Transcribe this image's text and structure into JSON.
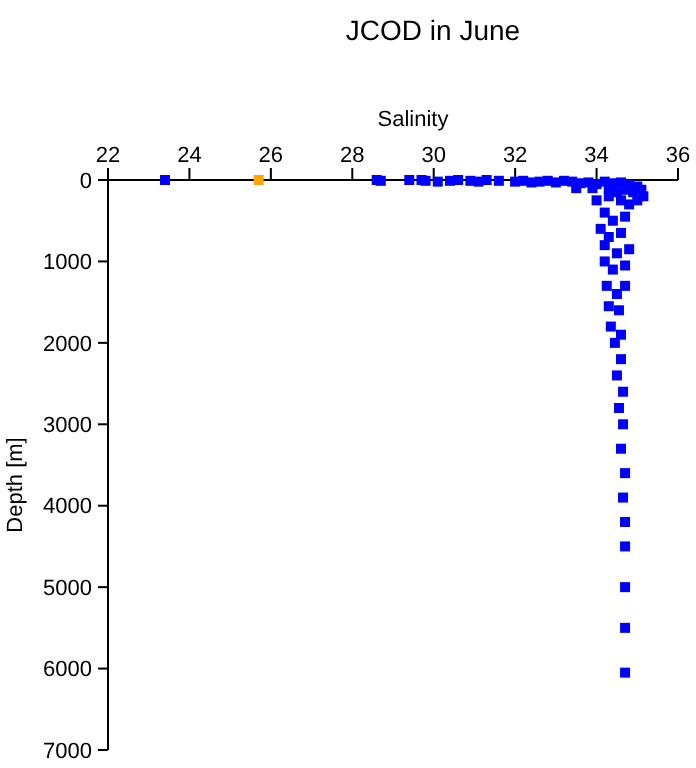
{
  "chart_data": {
    "type": "scatter",
    "title": "JCOD in June",
    "xlabel": "Salinity",
    "ylabel": "Depth [m]",
    "xlim": [
      22,
      36
    ],
    "xticks": [
      22,
      24,
      26,
      28,
      30,
      32,
      34,
      36
    ],
    "ylim": [
      7000,
      0
    ],
    "yticks": [
      0,
      1000,
      2000,
      3000,
      4000,
      5000,
      6000,
      7000
    ],
    "grid": false,
    "marker": "square",
    "series": [
      {
        "color": "#0000ff",
        "x": [
          23.4,
          28.6,
          28.7,
          29.4,
          29.7,
          29.8,
          30.1,
          30.4,
          30.6,
          30.9,
          31.1,
          31.3,
          31.6,
          32.0,
          32.2,
          32.4,
          32.6,
          32.8,
          33.0,
          33.2,
          33.4,
          33.6,
          33.8,
          34.0,
          34.2,
          34.4,
          34.6,
          34.8,
          35.0,
          35.1,
          35.15,
          35.0,
          34.8,
          34.5,
          34.3,
          33.5,
          33.9,
          34.3,
          34.7,
          34.9,
          34.0,
          34.6,
          34.2,
          34.4,
          34.7,
          34.1,
          34.3,
          34.6,
          34.2,
          34.5,
          34.8,
          34.2,
          34.4,
          34.7,
          34.25,
          34.5,
          34.7,
          34.3,
          34.55,
          34.35,
          34.6,
          34.45,
          34.6,
          34.5,
          34.65,
          34.55,
          34.65,
          34.6,
          34.7,
          34.65,
          34.7,
          34.7,
          34.7,
          34.7,
          34.7
        ],
        "values": [
          0,
          0,
          10,
          0,
          0,
          10,
          20,
          10,
          0,
          10,
          20,
          0,
          10,
          20,
          10,
          30,
          20,
          10,
          30,
          10,
          20,
          40,
          30,
          50,
          20,
          40,
          30,
          60,
          80,
          120,
          200,
          250,
          300,
          150,
          200,
          100,
          100,
          100,
          120,
          150,
          250,
          250,
          400,
          500,
          450,
          600,
          700,
          650,
          800,
          900,
          850,
          1000,
          1100,
          1050,
          1300,
          1400,
          1300,
          1550,
          1600,
          1800,
          1900,
          2000,
          2200,
          2400,
          2600,
          2800,
          3000,
          3300,
          3600,
          3900,
          4200,
          4500,
          5000,
          5500,
          6050
        ]
      },
      {
        "color": "#ffa500",
        "x": [
          25.7
        ],
        "values": [
          0
        ]
      }
    ]
  }
}
